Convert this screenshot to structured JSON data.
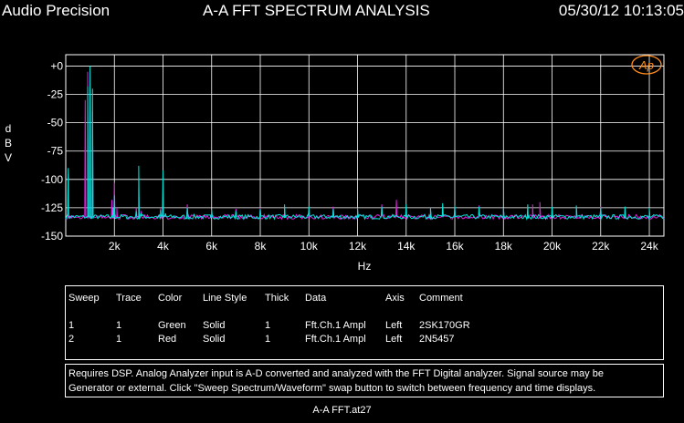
{
  "header": {
    "brand": "Audio Precision",
    "title": "A-A FFT SPECTRUM ANALYSIS",
    "timestamp": "05/30/12 10:13:05"
  },
  "logo_text": "Ap",
  "colors": {
    "background": "#000000",
    "grid": "#ffffff",
    "series1": "#00e5d8",
    "series2": "#e020e0"
  },
  "chart_data": {
    "type": "line",
    "ylabel": [
      "d",
      "B",
      "V"
    ],
    "xlabel": "Hz",
    "xlim": [
      0,
      24600
    ],
    "ylim": [
      -150,
      10
    ],
    "grid": true,
    "x_ticks": [
      2000,
      4000,
      6000,
      8000,
      10000,
      12000,
      14000,
      16000,
      18000,
      20000,
      22000,
      24000
    ],
    "x_tick_labels": [
      "2k",
      "4k",
      "6k",
      "8k",
      "10k",
      "12k",
      "14k",
      "16k",
      "18k",
      "20k",
      "22k",
      "24k"
    ],
    "y_ticks": [
      0,
      -25,
      -50,
      -75,
      -100,
      -125,
      -150
    ],
    "y_tick_labels": [
      "+0",
      "-25",
      "-50",
      "-75",
      "-100",
      "-125",
      "-150"
    ],
    "series": [
      {
        "name": "2SK170GR",
        "color": "#00e5d8",
        "floor": -133,
        "peaks": [
          [
            100,
            -90
          ],
          [
            900,
            -18
          ],
          [
            1000,
            0
          ],
          [
            1100,
            -20
          ],
          [
            1950,
            -125
          ],
          [
            2000,
            -114
          ],
          [
            2900,
            -128
          ],
          [
            3000,
            -88
          ],
          [
            3100,
            -130
          ],
          [
            3900,
            -127
          ],
          [
            4000,
            -92
          ],
          [
            4100,
            -130
          ],
          [
            5000,
            -125
          ],
          [
            6000,
            -127
          ],
          [
            7000,
            -128
          ],
          [
            8000,
            -126
          ],
          [
            9000,
            -122
          ],
          [
            10000,
            -124
          ],
          [
            11000,
            -126
          ],
          [
            12000,
            -125
          ],
          [
            13000,
            -124
          ],
          [
            14000,
            -122
          ],
          [
            15000,
            -125
          ],
          [
            15500,
            -121
          ],
          [
            16000,
            -123
          ],
          [
            17000,
            -124
          ],
          [
            18000,
            -125
          ],
          [
            19000,
            -122
          ],
          [
            20000,
            -124
          ],
          [
            21000,
            -123
          ],
          [
            22000,
            -125
          ],
          [
            23000,
            -124
          ],
          [
            24000,
            -125
          ]
        ]
      },
      {
        "name": "2N5457",
        "color": "#e020e0",
        "floor": -133,
        "peaks": [
          [
            100,
            -95
          ],
          [
            800,
            -30
          ],
          [
            900,
            -5
          ],
          [
            1000,
            -20
          ],
          [
            1100,
            -40
          ],
          [
            1900,
            -118
          ],
          [
            2000,
            -103
          ],
          [
            2100,
            -125
          ],
          [
            2900,
            -125
          ],
          [
            3000,
            -108
          ],
          [
            3100,
            -128
          ],
          [
            3900,
            -125
          ],
          [
            4000,
            -124
          ],
          [
            5000,
            -122
          ],
          [
            6000,
            -128
          ],
          [
            7000,
            -126
          ],
          [
            8000,
            -125
          ],
          [
            9000,
            -126
          ],
          [
            10000,
            -128
          ],
          [
            11000,
            -124
          ],
          [
            12000,
            -126
          ],
          [
            13000,
            -122
          ],
          [
            13600,
            -118
          ],
          [
            15000,
            -126
          ],
          [
            16000,
            -124
          ],
          [
            17000,
            -123
          ],
          [
            18000,
            -126
          ],
          [
            19200,
            -122
          ],
          [
            19500,
            -120
          ],
          [
            20000,
            -124
          ],
          [
            21000,
            -125
          ],
          [
            22000,
            -124
          ],
          [
            23000,
            -126
          ],
          [
            24000,
            -128
          ]
        ]
      }
    ]
  },
  "legend_table": {
    "headers": [
      "Sweep",
      "Trace",
      "Color",
      "Line Style",
      "Thick",
      "Data",
      "Axis",
      "Comment"
    ],
    "rows": [
      [
        "1",
        "1",
        "Green",
        "Solid",
        "1",
        "Fft.Ch.1 Ampl",
        "Left",
        "2SK170GR"
      ],
      [
        "2",
        "1",
        "Red",
        "Solid",
        "1",
        "Fft.Ch.1 Ampl",
        "Left",
        "2N5457"
      ]
    ]
  },
  "notes": [
    "Requires DSP.  Analog Analyzer input is A-D converted and analyzed with the FFT Digital analyzer.  Signal source may be",
    "Generator or external.  Click \"Sweep Spectrum/Waveform\" swap button to switch between frequency and time displays."
  ],
  "footer": {
    "filename": "A-A FFT.at27"
  }
}
